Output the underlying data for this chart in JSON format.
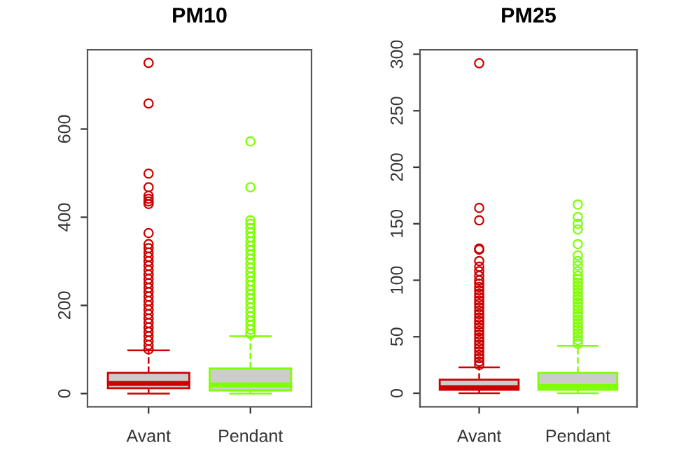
{
  "chart_data": [
    {
      "type": "box",
      "title": "PM10",
      "categories": [
        "Avant",
        "Pendant"
      ],
      "colors": [
        "#cc0000",
        "#7fff00"
      ],
      "ylim": [
        -30,
        780
      ],
      "yticks": [
        0,
        200,
        400,
        600
      ],
      "grid": false,
      "boxes": [
        {
          "low": 0,
          "q1": 12,
          "median": 23,
          "q3": 47,
          "high": 98,
          "outliers": [
            100,
            110,
            120,
            130,
            140,
            150,
            160,
            170,
            180,
            190,
            200,
            210,
            220,
            230,
            240,
            250,
            260,
            270,
            280,
            290,
            300,
            310,
            320,
            330,
            339,
            364,
            430,
            436,
            442,
            449,
            468,
            499,
            658,
            750
          ]
        },
        {
          "low": 0,
          "q1": 7,
          "median": 20,
          "q3": 57,
          "high": 130,
          "outliers": [
            135,
            145,
            155,
            165,
            175,
            185,
            195,
            205,
            215,
            225,
            235,
            245,
            255,
            265,
            275,
            285,
            295,
            305,
            315,
            325,
            335,
            345,
            355,
            365,
            375,
            385,
            393,
            468,
            572
          ]
        }
      ]
    },
    {
      "type": "box",
      "title": "PM25",
      "categories": [
        "Avant",
        "Pendant"
      ],
      "colors": [
        "#cc0000",
        "#7fff00"
      ],
      "ylim": [
        -12,
        304
      ],
      "yticks": [
        0,
        50,
        100,
        150,
        200,
        250,
        300
      ],
      "grid": false,
      "boxes": [
        {
          "low": 0,
          "q1": 3,
          "median": 5,
          "q3": 12,
          "high": 23,
          "outliers": [
            25,
            28,
            31,
            34,
            37,
            40,
            43,
            46,
            49,
            52,
            55,
            58,
            61,
            64,
            67,
            70,
            73,
            76,
            79,
            82,
            85,
            88,
            91,
            94,
            97,
            100,
            104,
            108,
            112,
            117,
            127,
            128,
            153,
            164,
            292
          ]
        },
        {
          "low": 0,
          "q1": 3,
          "median": 6,
          "q3": 18,
          "high": 42,
          "outliers": [
            44,
            47,
            50,
            53,
            56,
            59,
            62,
            65,
            68,
            71,
            74,
            77,
            80,
            83,
            86,
            89,
            92,
            95,
            98,
            101,
            104,
            108,
            113,
            117,
            122,
            132,
            145,
            150,
            156,
            167
          ]
        }
      ]
    }
  ]
}
